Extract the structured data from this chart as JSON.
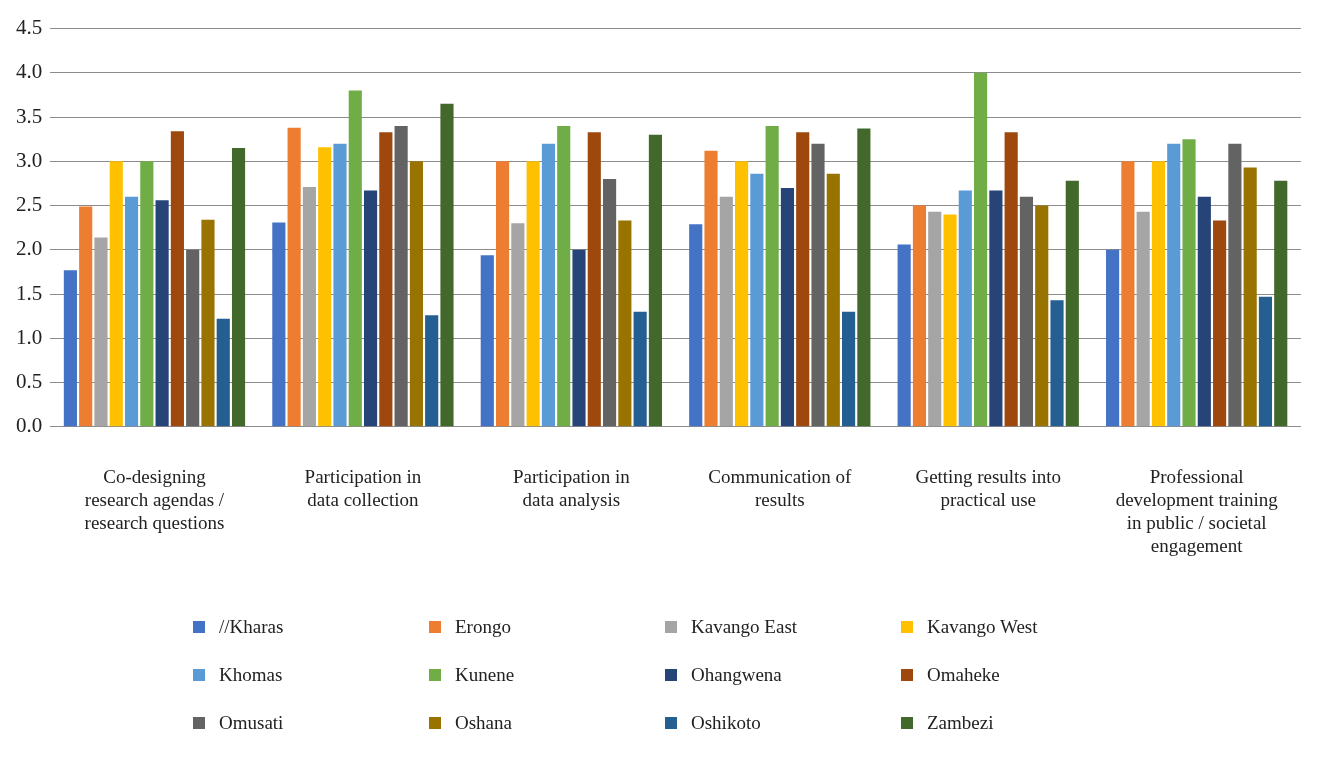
{
  "chart_data": {
    "type": "bar",
    "categories": [
      "Co-designing research agendas / research questions",
      "Participation in data collection",
      "Participation in data analysis",
      "Communication of results",
      "Getting results into practical use",
      "Professional development training in public / societal engagement"
    ],
    "series": [
      {
        "name": "//Kharas",
        "color": "#4472c4",
        "values": [
          1.77,
          2.31,
          1.94,
          2.29,
          2.06,
          2.0
        ]
      },
      {
        "name": "Erongo",
        "color": "#ed7d31",
        "values": [
          2.49,
          3.38,
          3.0,
          3.12,
          2.5,
          3.0
        ]
      },
      {
        "name": "Kavango East",
        "color": "#a5a5a5",
        "values": [
          2.14,
          2.71,
          2.3,
          2.6,
          2.43,
          2.43
        ]
      },
      {
        "name": "Kavango West",
        "color": "#ffc000",
        "values": [
          3.0,
          3.16,
          3.0,
          3.0,
          2.4,
          3.0
        ]
      },
      {
        "name": "Khomas",
        "color": "#5b9bd5",
        "values": [
          2.6,
          3.2,
          3.2,
          2.86,
          2.67,
          3.2
        ]
      },
      {
        "name": "Kunene",
        "color": "#70ad47",
        "values": [
          3.0,
          3.8,
          3.4,
          3.4,
          4.0,
          3.25
        ]
      },
      {
        "name": "Ohangwena",
        "color": "#264478",
        "values": [
          2.56,
          2.67,
          2.0,
          2.7,
          2.67,
          2.6
        ]
      },
      {
        "name": "Omaheke",
        "color": "#9e480e",
        "values": [
          3.34,
          3.33,
          3.33,
          3.33,
          3.33,
          2.33
        ]
      },
      {
        "name": "Omusati",
        "color": "#636363",
        "values": [
          2.0,
          3.4,
          2.8,
          3.2,
          2.6,
          3.2
        ]
      },
      {
        "name": "Oshana",
        "color": "#997300",
        "values": [
          2.34,
          3.0,
          2.33,
          2.86,
          2.5,
          2.93
        ]
      },
      {
        "name": "Oshikoto",
        "color": "#255e91",
        "values": [
          1.22,
          1.26,
          1.3,
          1.3,
          1.43,
          1.47
        ]
      },
      {
        "name": "Zambezi",
        "color": "#43682b",
        "values": [
          3.15,
          3.65,
          3.3,
          3.37,
          2.78,
          2.78
        ]
      }
    ],
    "ylim": [
      0,
      4.5
    ],
    "yticks": [
      {
        "value": 0,
        "label": "0.0"
      },
      {
        "value": 0.5,
        "label": "0.5"
      },
      {
        "value": 1,
        "label": "1.0"
      },
      {
        "value": 1.5,
        "label": "1.5"
      },
      {
        "value": 2,
        "label": "2.0"
      },
      {
        "value": 2.5,
        "label": "2.5"
      },
      {
        "value": 3,
        "label": "3.0"
      },
      {
        "value": 3.5,
        "label": "3.5"
      },
      {
        "value": 4,
        "label": "4.0"
      },
      {
        "value": 4.5,
        "label": "4.5"
      }
    ],
    "grid": "y",
    "legend": "bottom"
  }
}
